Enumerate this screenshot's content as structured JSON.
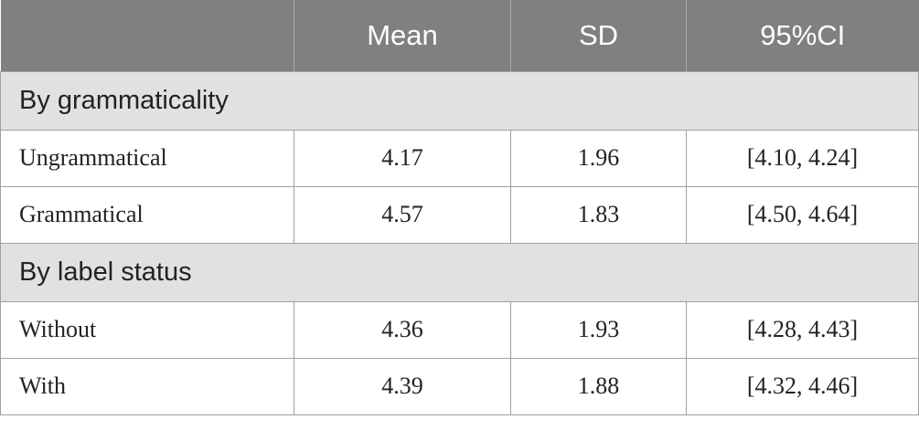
{
  "header": {
    "columns": [
      "Mean",
      "SD",
      "95%CI"
    ]
  },
  "sections": [
    {
      "title": "By grammaticality",
      "rows": [
        [
          "Ungrammatical",
          "4.17",
          "1.96",
          "[4.10, 4.24]"
        ],
        [
          "Grammatical",
          "4.57",
          "1.83",
          "[4.50, 4.64]"
        ]
      ]
    },
    {
      "title": "By label status",
      "rows": [
        [
          "Without",
          "4.36",
          "1.93",
          "[4.28, 4.43]"
        ],
        [
          "With",
          "4.39",
          "1.88",
          "[4.32, 4.46]"
        ]
      ]
    }
  ]
}
